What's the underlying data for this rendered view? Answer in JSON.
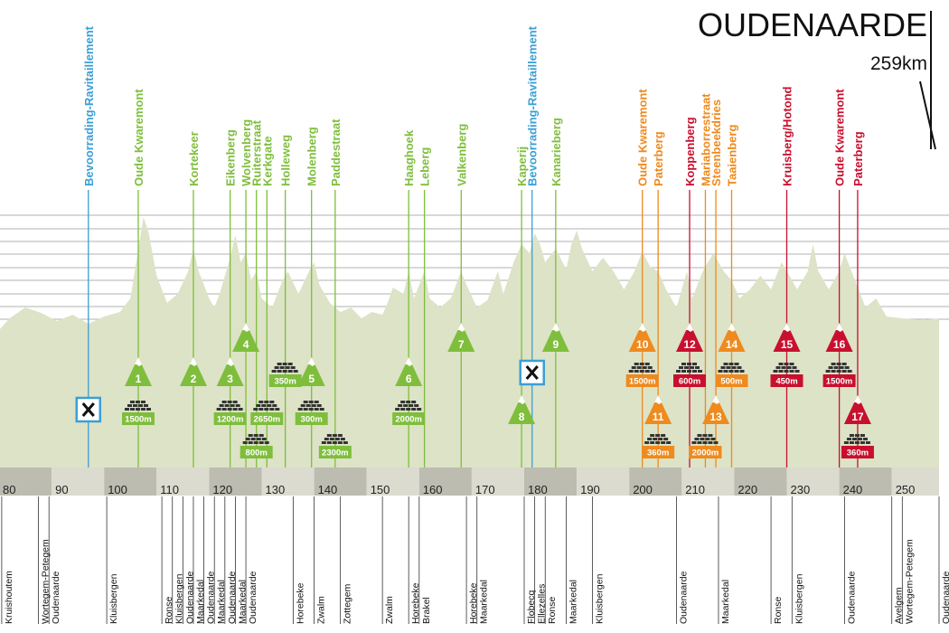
{
  "finish": {
    "name": "OUDENAARDE",
    "distance": "259km"
  },
  "colors": {
    "green": "#7fbe3c",
    "orange": "#ee8a1e",
    "red": "#c8102e",
    "blue": "#3b9fd6",
    "profile": "#dde3c6"
  },
  "axis": {
    "ticks": [
      {
        "km": 80,
        "label": "80"
      },
      {
        "km": 90,
        "label": "90"
      },
      {
        "km": 100,
        "label": "100"
      },
      {
        "km": 110,
        "label": "110"
      },
      {
        "km": 120,
        "label": "120"
      },
      {
        "km": 130,
        "label": "130"
      },
      {
        "km": 140,
        "label": "140"
      },
      {
        "km": 150,
        "label": "150"
      },
      {
        "km": 160,
        "label": "160"
      },
      {
        "km": 170,
        "label": "170"
      },
      {
        "km": 180,
        "label": "180"
      },
      {
        "km": 190,
        "label": "190"
      },
      {
        "km": 200,
        "label": "200"
      },
      {
        "km": 210,
        "label": "210"
      },
      {
        "km": 220,
        "label": "220"
      },
      {
        "km": 230,
        "label": "230"
      },
      {
        "km": 240,
        "label": "240"
      },
      {
        "km": 250,
        "label": "250"
      }
    ]
  },
  "climbs": [
    {
      "num": "1",
      "name": "Oude Kwaremont",
      "km": 106.5,
      "category": "green",
      "length": "1500m"
    },
    {
      "num": "2",
      "name": "Kortekeer",
      "km": 117,
      "category": "green",
      "length": ""
    },
    {
      "num": "3",
      "name": "Eikenberg",
      "km": 124,
      "category": "green",
      "length": "1200m"
    },
    {
      "num": "4",
      "name": "Wolvenberg",
      "km": 127,
      "category": "green",
      "length": ""
    },
    {
      "num": "",
      "name": "Ruiterstraat",
      "km": 129,
      "category": "green",
      "length": "800m"
    },
    {
      "num": "",
      "name": "Kerkgate",
      "km": 131,
      "category": "green",
      "length": "2650m"
    },
    {
      "num": "",
      "name": "Holleweg",
      "km": 134.5,
      "category": "green",
      "length": "350m"
    },
    {
      "num": "5",
      "name": "Molenberg",
      "km": 139.5,
      "category": "green",
      "length": "300m"
    },
    {
      "num": "",
      "name": "Paddestraat",
      "km": 144,
      "category": "green",
      "length": "2300m"
    },
    {
      "num": "6",
      "name": "Haaghoek",
      "km": 158,
      "category": "green",
      "length": "2000m"
    },
    {
      "num": "",
      "name": "Leberg",
      "km": 161,
      "category": "green",
      "length": ""
    },
    {
      "num": "7",
      "name": "Valkenberg",
      "km": 168,
      "category": "green",
      "length": ""
    },
    {
      "num": "8",
      "name": "Kaperij",
      "km": 179.5,
      "category": "green",
      "length": ""
    },
    {
      "num": "9",
      "name": "Kanarieberg",
      "km": 186,
      "category": "green",
      "length": ""
    },
    {
      "num": "10",
      "name": "Oude Kwaremont",
      "km": 202.5,
      "category": "orange",
      "length": "1500m"
    },
    {
      "num": "11",
      "name": "Paterberg",
      "km": 205.5,
      "category": "orange",
      "length": "360m"
    },
    {
      "num": "12",
      "name": "Koppenberg",
      "km": 211.5,
      "category": "red",
      "length": "600m"
    },
    {
      "num": "",
      "name": "Mariaborrestraat",
      "km": 214.5,
      "category": "orange",
      "length": "2000m"
    },
    {
      "num": "13",
      "name": "Steenbeekdries",
      "km": 216.5,
      "category": "orange",
      "length": ""
    },
    {
      "num": "14",
      "name": "Taaienberg",
      "km": 219.5,
      "category": "orange",
      "length": "500m"
    },
    {
      "num": "15",
      "name": "Kruisberg/Hotond",
      "km": 230,
      "category": "red",
      "length": "450m"
    },
    {
      "num": "16",
      "name": "Oude Kwaremont",
      "km": 240,
      "category": "red",
      "length": "1500m"
    },
    {
      "num": "17",
      "name": "Paterberg",
      "km": 243.5,
      "category": "red",
      "length": "360m"
    }
  ],
  "feeds": [
    {
      "name": "Bevoorrading-Ravitaillement",
      "km": 97
    },
    {
      "name": "Bevoorrading-Ravitaillement",
      "km": 181.5
    }
  ],
  "towns": [
    {
      "name": "Kruishoutem",
      "km": 80.5
    },
    {
      "name": "Wortegem-Petegem",
      "km": 87.5
    },
    {
      "name": "Oudenaarde",
      "km": 89.5
    },
    {
      "name": "Kluisbergen",
      "km": 100.5
    },
    {
      "name": "Ronse",
      "km": 111
    },
    {
      "name": "Kluisbergen",
      "km": 113
    },
    {
      "name": "Oudenaarde",
      "km": 115
    },
    {
      "name": "Maarkedal",
      "km": 117
    },
    {
      "name": "Oudenaarde",
      "km": 119
    },
    {
      "name": "Maarkedal",
      "km": 121
    },
    {
      "name": "Oudenaarde",
      "km": 123
    },
    {
      "name": "Maarkedal",
      "km": 125
    },
    {
      "name": "Oudenaarde",
      "km": 127
    },
    {
      "name": "Horebeke",
      "km": 136
    },
    {
      "name": "Zwalm",
      "km": 140
    },
    {
      "name": "Zottegem",
      "km": 145
    },
    {
      "name": "Zwalm",
      "km": 153
    },
    {
      "name": "Horebeke",
      "km": 158
    },
    {
      "name": "Brakel",
      "km": 160
    },
    {
      "name": "Horebeke",
      "km": 169
    },
    {
      "name": "Maarkedal",
      "km": 171
    },
    {
      "name": "Flobecq",
      "km": 180
    },
    {
      "name": "Ellezelles",
      "km": 182
    },
    {
      "name": "Ronse",
      "km": 184
    },
    {
      "name": "Maarkedal",
      "km": 188
    },
    {
      "name": "Kluisbergen",
      "km": 193
    },
    {
      "name": "Oudenaarde",
      "km": 209
    },
    {
      "name": "Maarkedal",
      "km": 217
    },
    {
      "name": "Ronse",
      "km": 227
    },
    {
      "name": "Kluisbergen",
      "km": 231
    },
    {
      "name": "Oudenaarde",
      "km": 241
    },
    {
      "name": "Avelgem",
      "km": 250
    },
    {
      "name": "Wortegem-Petegem",
      "km": 252
    },
    {
      "name": "Oudenaarde",
      "km": 259
    }
  ]
}
